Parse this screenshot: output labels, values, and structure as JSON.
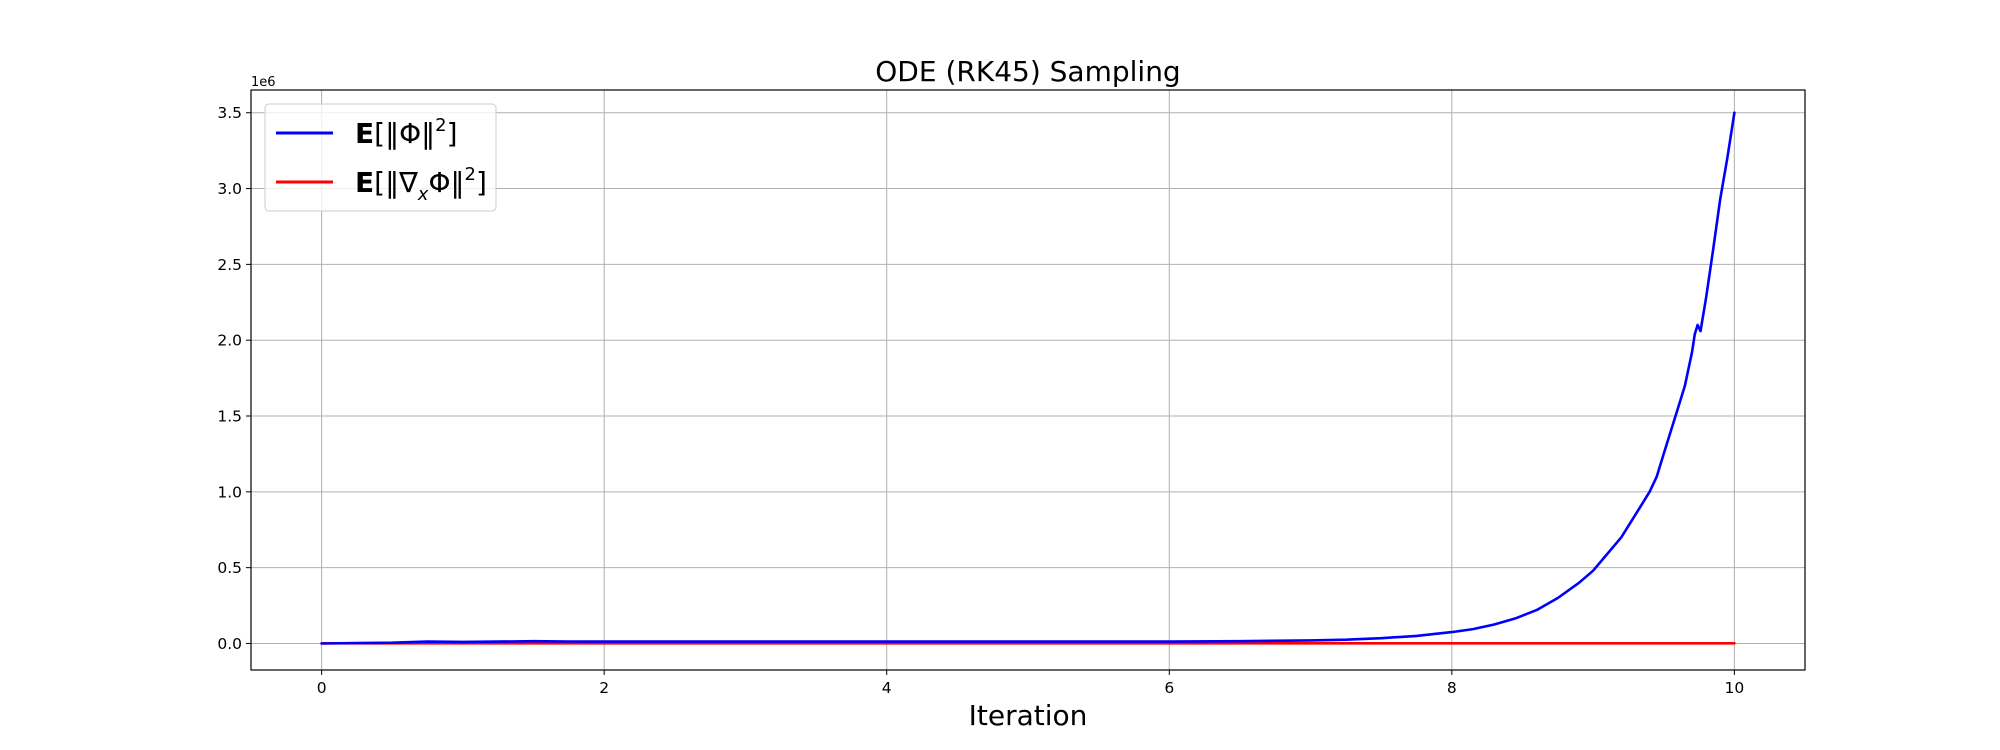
{
  "chart_data": {
    "type": "line",
    "title": "ODE (RK45) Sampling",
    "xlabel": "Iteration",
    "ylabel": "",
    "y_offset_text": "1e6",
    "xlim": [
      -0.5,
      10.5
    ],
    "ylim": [
      -0.175,
      3.65
    ],
    "x_ticks": [
      0,
      2,
      4,
      6,
      8,
      10
    ],
    "x_tick_labels": [
      "0",
      "2",
      "4",
      "6",
      "8",
      "10"
    ],
    "y_ticks": [
      0.0,
      0.5,
      1.0,
      1.5,
      2.0,
      2.5,
      3.0,
      3.5
    ],
    "y_tick_labels": [
      "0.0",
      "0.5",
      "1.0",
      "1.5",
      "2.0",
      "2.5",
      "3.0",
      "3.5"
    ],
    "grid": true,
    "legend_position": "top-left",
    "series": [
      {
        "name": "E[‖Φ‖²]",
        "color": "#0000ff",
        "x": [
          0,
          0.25,
          0.5,
          0.75,
          1.0,
          1.25,
          1.5,
          1.75,
          2,
          3,
          4,
          5,
          6,
          6.5,
          7.0,
          7.25,
          7.5,
          7.75,
          8.0,
          8.15,
          8.3,
          8.45,
          8.6,
          8.75,
          8.9,
          9.0,
          9.1,
          9.2,
          9.3,
          9.4,
          9.45,
          9.5,
          9.6,
          9.65,
          9.7,
          9.72,
          9.74,
          9.76,
          9.8,
          9.85,
          9.9,
          9.95,
          10.0
        ],
        "y": [
          0.0,
          0.003,
          0.005,
          0.012,
          0.01,
          0.012,
          0.015,
          0.013,
          0.012,
          0.012,
          0.012,
          0.012,
          0.012,
          0.015,
          0.02,
          0.025,
          0.035,
          0.05,
          0.075,
          0.095,
          0.125,
          0.165,
          0.22,
          0.3,
          0.4,
          0.48,
          0.59,
          0.7,
          0.85,
          1.0,
          1.1,
          1.25,
          1.55,
          1.7,
          1.92,
          2.04,
          2.1,
          2.06,
          2.28,
          2.6,
          2.93,
          3.2,
          3.5
        ]
      },
      {
        "name": "E[‖∇ₓΦ‖²]",
        "color": "#ff0000",
        "x": [
          0,
          1,
          2,
          3,
          4,
          5,
          6,
          7,
          8,
          9,
          10
        ],
        "y": [
          0.001,
          0.001,
          0.001,
          0.001,
          0.001,
          0.001,
          0.001,
          0.001,
          0.001,
          0.001,
          0.001
        ]
      }
    ],
    "legend": {
      "entries": [
        {
          "prefix": "E",
          "open": "[‖Φ‖",
          "sup": "2",
          "close": "]",
          "color": "#0000ff"
        },
        {
          "prefix": "E",
          "open": "[‖∇",
          "sub": "x",
          "mid": "Φ‖",
          "sup": "2",
          "close": "]",
          "color": "#ff0000"
        }
      ]
    }
  }
}
